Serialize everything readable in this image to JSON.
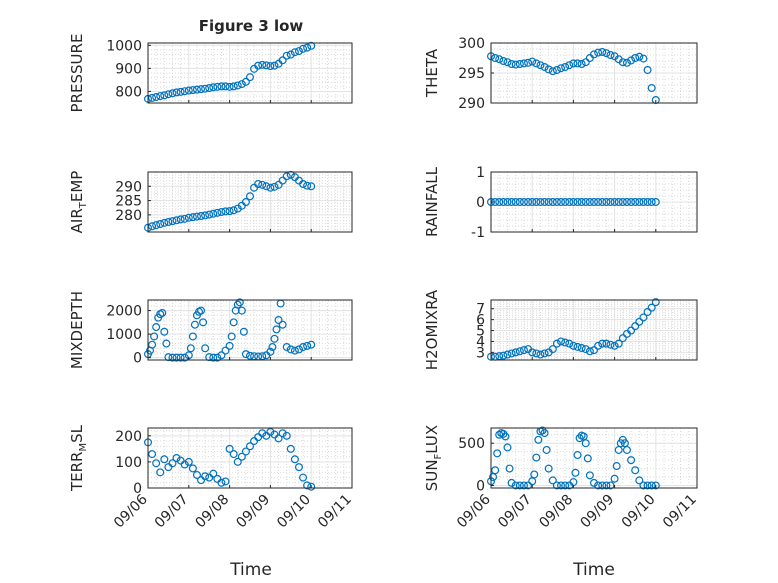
{
  "figure_title": "Figure 3 low",
  "chart_data": [
    {
      "type": "scatter",
      "ylabel": "PRESSURE",
      "ylim": [
        750,
        1010
      ],
      "yticks": [
        800,
        900,
        1000
      ],
      "xticks": [
        "09/06",
        "09/07",
        "09/08",
        "09/09",
        "09/10",
        "09/11"
      ],
      "xlim": [
        0,
        5
      ],
      "x": [
        0.0,
        0.1,
        0.2,
        0.3,
        0.4,
        0.5,
        0.6,
        0.7,
        0.8,
        0.9,
        1.0,
        1.1,
        1.2,
        1.3,
        1.4,
        1.5,
        1.6,
        1.7,
        1.8,
        1.9,
        2.0,
        2.1,
        2.2,
        2.3,
        2.4,
        2.5,
        2.6,
        2.7,
        2.8,
        2.9,
        3.0,
        3.1,
        3.2,
        3.3,
        3.4,
        3.5,
        3.6,
        3.7,
        3.8,
        3.9,
        4.0
      ],
      "y": [
        768,
        772,
        776,
        780,
        783,
        788,
        792,
        796,
        798,
        801,
        804,
        806,
        808,
        810,
        812,
        815,
        818,
        820,
        822,
        822,
        820,
        822,
        826,
        832,
        842,
        862,
        898,
        912,
        915,
        913,
        910,
        912,
        920,
        935,
        955,
        960,
        970,
        975,
        985,
        990,
        998
      ],
      "grid": true
    },
    {
      "type": "scatter",
      "ylabel": "THETA",
      "ylim": [
        290,
        300
      ],
      "yticks": [
        290,
        295,
        300
      ],
      "xticks": [
        "09/06",
        "09/07",
        "09/08",
        "09/09",
        "09/10",
        "09/11"
      ],
      "xlim": [
        0,
        5
      ],
      "x": [
        0.0,
        0.1,
        0.2,
        0.3,
        0.4,
        0.5,
        0.6,
        0.7,
        0.8,
        0.9,
        1.0,
        1.1,
        1.2,
        1.3,
        1.4,
        1.5,
        1.6,
        1.7,
        1.8,
        1.9,
        2.0,
        2.1,
        2.2,
        2.3,
        2.4,
        2.5,
        2.6,
        2.7,
        2.8,
        2.9,
        3.0,
        3.1,
        3.2,
        3.3,
        3.4,
        3.5,
        3.6,
        3.7,
        3.8,
        3.9,
        4.0
      ],
      "y": [
        297.8,
        297.5,
        297.3,
        297.0,
        296.8,
        296.5,
        296.4,
        296.5,
        296.6,
        296.7,
        296.9,
        296.6,
        296.3,
        296.0,
        295.6,
        295.3,
        295.5,
        295.8,
        296.0,
        296.3,
        296.6,
        296.6,
        296.5,
        296.8,
        297.5,
        298.1,
        298.4,
        298.5,
        298.3,
        298.0,
        297.8,
        297.3,
        296.8,
        296.7,
        297.1,
        297.5,
        297.7,
        297.4,
        295.5,
        292.5,
        290.5
      ],
      "grid": true
    },
    {
      "type": "scatter",
      "ylabel": "AIR_TEMP",
      "ylim": [
        274,
        295
      ],
      "yticks": [
        280,
        285,
        290
      ],
      "xticks": [
        "09/06",
        "09/07",
        "09/08",
        "09/09",
        "09/10",
        "09/11"
      ],
      "xlim": [
        0,
        5
      ],
      "x": [
        0.0,
        0.1,
        0.2,
        0.3,
        0.4,
        0.5,
        0.6,
        0.7,
        0.8,
        0.9,
        1.0,
        1.1,
        1.2,
        1.3,
        1.4,
        1.5,
        1.6,
        1.7,
        1.8,
        1.9,
        2.0,
        2.1,
        2.2,
        2.3,
        2.4,
        2.5,
        2.6,
        2.7,
        2.8,
        2.9,
        3.0,
        3.1,
        3.2,
        3.3,
        3.4,
        3.5,
        3.6,
        3.7,
        3.8,
        3.9,
        4.0
      ],
      "y": [
        275.5,
        276.0,
        276.4,
        276.8,
        277.2,
        277.5,
        277.8,
        278.1,
        278.4,
        278.6,
        279.0,
        279.2,
        279.4,
        279.6,
        279.8,
        280.1,
        280.4,
        280.7,
        281.0,
        281.2,
        281.3,
        281.6,
        282.2,
        283.2,
        284.5,
        286.5,
        289.5,
        290.8,
        290.5,
        290.0,
        289.5,
        289.8,
        290.5,
        292.0,
        293.5,
        294.0,
        293.2,
        292.0,
        290.8,
        290.2,
        290.0
      ],
      "grid": true
    },
    {
      "type": "scatter",
      "ylabel": "RAINFALL",
      "ylim": [
        -1,
        1
      ],
      "yticks": [
        -1,
        0,
        1
      ],
      "xticks": [
        "09/06",
        "09/07",
        "09/08",
        "09/09",
        "09/10",
        "09/11"
      ],
      "xlim": [
        0,
        5
      ],
      "x": [
        0.0,
        0.1,
        0.2,
        0.3,
        0.4,
        0.5,
        0.6,
        0.7,
        0.8,
        0.9,
        1.0,
        1.1,
        1.2,
        1.3,
        1.4,
        1.5,
        1.6,
        1.7,
        1.8,
        1.9,
        2.0,
        2.1,
        2.2,
        2.3,
        2.4,
        2.5,
        2.6,
        2.7,
        2.8,
        2.9,
        3.0,
        3.1,
        3.2,
        3.3,
        3.4,
        3.5,
        3.6,
        3.7,
        3.8,
        3.9,
        4.0
      ],
      "y": [
        0,
        0,
        0,
        0,
        0,
        0,
        0,
        0,
        0,
        0,
        0,
        0,
        0,
        0,
        0,
        0,
        0,
        0,
        0,
        0,
        0,
        0,
        0,
        0,
        0,
        0,
        0,
        0,
        0,
        0,
        0,
        0,
        0,
        0,
        0,
        0,
        0,
        0,
        0,
        0,
        0
      ],
      "grid": true
    },
    {
      "type": "scatter",
      "ylabel": "MIXDEPTH",
      "ylim": [
        -100,
        2450
      ],
      "yticks": [
        0,
        1000,
        2000
      ],
      "xticks": [
        "09/06",
        "09/07",
        "09/08",
        "09/09",
        "09/10",
        "09/11"
      ],
      "xlim": [
        0,
        5
      ],
      "x": [
        0.0,
        0.05,
        0.1,
        0.15,
        0.2,
        0.25,
        0.3,
        0.35,
        0.4,
        0.45,
        0.5,
        0.6,
        0.7,
        0.8,
        0.9,
        1.0,
        1.05,
        1.1,
        1.15,
        1.2,
        1.25,
        1.3,
        1.35,
        1.4,
        1.5,
        1.6,
        1.7,
        1.8,
        1.9,
        2.0,
        2.05,
        2.1,
        2.15,
        2.2,
        2.25,
        2.3,
        2.35,
        2.4,
        2.5,
        2.6,
        2.7,
        2.8,
        2.9,
        3.0,
        3.05,
        3.1,
        3.15,
        3.2,
        3.25,
        3.3,
        3.4,
        3.5,
        3.6,
        3.7,
        3.8,
        3.9,
        4.0
      ],
      "y": [
        150,
        300,
        550,
        900,
        1300,
        1700,
        1850,
        1900,
        1100,
        600,
        20,
        0,
        0,
        0,
        0,
        100,
        400,
        900,
        1400,
        1800,
        1950,
        2000,
        1500,
        400,
        20,
        0,
        0,
        100,
        300,
        500,
        900,
        1500,
        2000,
        2250,
        2350,
        2000,
        1100,
        150,
        80,
        60,
        50,
        60,
        100,
        250,
        450,
        800,
        1200,
        1600,
        2300,
        1400,
        450,
        350,
        300,
        350,
        450,
        500,
        550
      ],
      "grid": true
    },
    {
      "type": "scatter",
      "ylabel": "H2OMIXRA",
      "ylim": [
        2.3,
        7.8
      ],
      "yticks": [
        3,
        4,
        5,
        6,
        7
      ],
      "xticks": [
        "09/06",
        "09/07",
        "09/08",
        "09/09",
        "09/10",
        "09/11"
      ],
      "xlim": [
        0,
        5
      ],
      "x": [
        0.0,
        0.1,
        0.2,
        0.3,
        0.4,
        0.5,
        0.6,
        0.7,
        0.8,
        0.9,
        1.0,
        1.1,
        1.2,
        1.3,
        1.4,
        1.5,
        1.6,
        1.7,
        1.8,
        1.9,
        2.0,
        2.1,
        2.2,
        2.3,
        2.4,
        2.5,
        2.6,
        2.7,
        2.8,
        2.9,
        3.0,
        3.1,
        3.2,
        3.3,
        3.4,
        3.5,
        3.6,
        3.7,
        3.8,
        3.9,
        4.0
      ],
      "y": [
        2.6,
        2.6,
        2.65,
        2.7,
        2.8,
        2.9,
        3.0,
        3.1,
        3.2,
        3.3,
        3.0,
        2.9,
        2.8,
        2.9,
        3.0,
        3.3,
        3.8,
        4.0,
        3.9,
        3.8,
        3.6,
        3.5,
        3.4,
        3.3,
        3.1,
        3.2,
        3.6,
        3.8,
        3.8,
        3.7,
        3.6,
        3.8,
        4.3,
        4.7,
        5.0,
        5.4,
        5.8,
        6.2,
        6.7,
        7.1,
        7.6
      ],
      "grid": true
    },
    {
      "type": "scatter",
      "ylabel": "TERR_MSL",
      "ylim": [
        0,
        230
      ],
      "yticks": [
        0,
        100,
        200
      ],
      "xticks": [
        "09/06",
        "09/07",
        "09/08",
        "09/09",
        "09/10",
        "09/11"
      ],
      "xlim": [
        0,
        5
      ],
      "x": [
        0.0,
        0.1,
        0.2,
        0.3,
        0.4,
        0.5,
        0.6,
        0.7,
        0.8,
        0.9,
        1.0,
        1.1,
        1.2,
        1.3,
        1.4,
        1.5,
        1.6,
        1.7,
        1.8,
        1.9,
        2.0,
        2.1,
        2.2,
        2.3,
        2.4,
        2.5,
        2.6,
        2.7,
        2.8,
        2.9,
        3.0,
        3.1,
        3.2,
        3.3,
        3.4,
        3.5,
        3.6,
        3.7,
        3.8,
        3.9,
        4.0
      ],
      "y": [
        175,
        130,
        95,
        60,
        110,
        80,
        95,
        115,
        105,
        90,
        100,
        75,
        50,
        30,
        45,
        40,
        55,
        35,
        20,
        25,
        150,
        130,
        100,
        120,
        140,
        160,
        180,
        195,
        210,
        200,
        215,
        205,
        190,
        210,
        200,
        150,
        110,
        80,
        40,
        10,
        5
      ],
      "grid": true
    },
    {
      "type": "scatter",
      "ylabel": "SUN_FLUX",
      "ylim": [
        -30,
        680
      ],
      "yticks": [
        0,
        500
      ],
      "xticks": [
        "09/06",
        "09/07",
        "09/08",
        "09/09",
        "09/10",
        "09/11"
      ],
      "xlim": [
        0,
        5
      ],
      "x": [
        0.0,
        0.05,
        0.1,
        0.15,
        0.2,
        0.25,
        0.3,
        0.35,
        0.4,
        0.45,
        0.5,
        0.6,
        0.7,
        0.8,
        0.9,
        1.0,
        1.05,
        1.1,
        1.15,
        1.2,
        1.25,
        1.3,
        1.35,
        1.4,
        1.5,
        1.6,
        1.7,
        1.8,
        1.9,
        2.0,
        2.05,
        2.1,
        2.15,
        2.2,
        2.25,
        2.3,
        2.35,
        2.4,
        2.5,
        2.6,
        2.7,
        2.8,
        2.9,
        3.0,
        3.05,
        3.1,
        3.15,
        3.2,
        3.25,
        3.3,
        3.4,
        3.5,
        3.6,
        3.7,
        3.8,
        3.9,
        4.0
      ],
      "y": [
        50,
        100,
        180,
        380,
        600,
        620,
        610,
        580,
        450,
        200,
        30,
        0,
        0,
        0,
        0,
        50,
        130,
        330,
        540,
        640,
        650,
        620,
        420,
        200,
        60,
        0,
        0,
        0,
        0,
        40,
        150,
        360,
        560,
        590,
        580,
        500,
        320,
        120,
        30,
        0,
        0,
        0,
        0,
        80,
        230,
        420,
        500,
        540,
        500,
        420,
        300,
        180,
        60,
        0,
        0,
        0,
        0
      ],
      "grid": true
    }
  ],
  "xlabel_left": "Time",
  "xlabel_right": "Time"
}
